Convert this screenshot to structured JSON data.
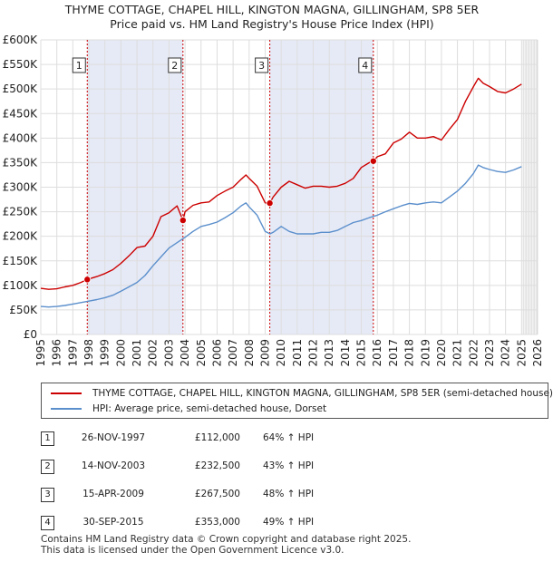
{
  "chart_data": {
    "type": "line",
    "title": "THYME COTTAGE, CHAPEL HILL, KINGTON MAGNA, GILLINGHAM, SP8 5ER",
    "subtitle": "Price paid vs. HM Land Registry's House Price Index (HPI)",
    "xlim": [
      1995,
      2026
    ],
    "ylim": [
      0,
      600000
    ],
    "x_ticks": [
      "1995",
      "1996",
      "1997",
      "1998",
      "1999",
      "2000",
      "2001",
      "2002",
      "2003",
      "2004",
      "2005",
      "2006",
      "2007",
      "2008",
      "2009",
      "2010",
      "2011",
      "2012",
      "2013",
      "2014",
      "2015",
      "2016",
      "2017",
      "2018",
      "2019",
      "2020",
      "2021",
      "2022",
      "2023",
      "2024",
      "2025",
      "2026"
    ],
    "y_ticks": [
      {
        "value": 0,
        "label": "£0"
      },
      {
        "value": 50000,
        "label": "£50K"
      },
      {
        "value": 100000,
        "label": "£100K"
      },
      {
        "value": 150000,
        "label": "£150K"
      },
      {
        "value": 200000,
        "label": "£200K"
      },
      {
        "value": 250000,
        "label": "£250K"
      },
      {
        "value": 300000,
        "label": "£300K"
      },
      {
        "value": 350000,
        "label": "£350K"
      },
      {
        "value": 400000,
        "label": "£400K"
      },
      {
        "value": 450000,
        "label": "£450K"
      },
      {
        "value": 500000,
        "label": "£500K"
      },
      {
        "value": 550000,
        "label": "£550K"
      },
      {
        "value": 600000,
        "label": "£600K"
      }
    ],
    "shaded_periods": [
      [
        1997.9,
        2003.87
      ],
      [
        2009.29,
        2015.75
      ]
    ],
    "forecast_start": 2025.1,
    "series": [
      {
        "name": "THYME COTTAGE, CHAPEL HILL, KINGTON MAGNA, GILLINGHAM, SP8 5ER (semi-detached house)",
        "color": "#cc0000",
        "x": [
          1995.0,
          1995.5,
          1996.0,
          1996.5,
          1997.0,
          1997.5,
          1997.9,
          1998.5,
          1999.0,
          1999.5,
          2000.0,
          2000.5,
          2001.0,
          2001.5,
          2002.0,
          2002.5,
          2003.0,
          2003.5,
          2003.87,
          2004.0,
          2004.5,
          2005.0,
          2005.5,
          2006.0,
          2006.5,
          2007.0,
          2007.5,
          2007.8,
          2008.0,
          2008.5,
          2009.0,
          2009.29,
          2009.5,
          2010.0,
          2010.5,
          2011.0,
          2011.5,
          2012.0,
          2012.5,
          2013.0,
          2013.5,
          2014.0,
          2014.5,
          2015.0,
          2015.5,
          2015.75,
          2016.0,
          2016.5,
          2017.0,
          2017.5,
          2018.0,
          2018.5,
          2019.0,
          2019.5,
          2020.0,
          2020.5,
          2021.0,
          2021.5,
          2022.0,
          2022.3,
          2022.6,
          2023.0,
          2023.5,
          2024.0,
          2024.5,
          2025.0
        ],
        "y": [
          94000,
          92000,
          93000,
          97000,
          100000,
          106000,
          112000,
          118000,
          124000,
          132000,
          145000,
          160000,
          177000,
          180000,
          200000,
          240000,
          248000,
          262000,
          232500,
          250000,
          263000,
          268000,
          270000,
          283000,
          292000,
          300000,
          316000,
          325000,
          318000,
          302000,
          268000,
          267500,
          280000,
          300000,
          312000,
          305000,
          298000,
          302000,
          302000,
          300000,
          302000,
          308000,
          318000,
          340000,
          350000,
          353000,
          362000,
          368000,
          390000,
          398000,
          412000,
          400000,
          400000,
          403000,
          396000,
          418000,
          438000,
          475000,
          505000,
          522000,
          512000,
          505000,
          495000,
          492000,
          500000,
          510000
        ]
      },
      {
        "name": "HPI: Average price, semi-detached house, Dorset",
        "color": "#5b8fcc",
        "x": [
          1995.0,
          1995.5,
          1996.0,
          1996.5,
          1997.0,
          1997.5,
          1998.0,
          1998.5,
          1999.0,
          1999.5,
          2000.0,
          2000.5,
          2001.0,
          2001.5,
          2002.0,
          2002.5,
          2003.0,
          2003.5,
          2004.0,
          2004.5,
          2005.0,
          2005.5,
          2006.0,
          2006.5,
          2007.0,
          2007.5,
          2007.8,
          2008.0,
          2008.5,
          2009.0,
          2009.3,
          2009.5,
          2010.0,
          2010.5,
          2011.0,
          2011.5,
          2012.0,
          2012.5,
          2013.0,
          2013.5,
          2014.0,
          2014.5,
          2015.0,
          2015.5,
          2016.0,
          2016.5,
          2017.0,
          2017.5,
          2018.0,
          2018.5,
          2019.0,
          2019.5,
          2020.0,
          2020.5,
          2021.0,
          2021.5,
          2022.0,
          2022.3,
          2022.6,
          2023.0,
          2023.5,
          2024.0,
          2024.5,
          2025.0
        ],
        "y": [
          57000,
          56000,
          57000,
          59000,
          62000,
          65000,
          68000,
          71000,
          75000,
          80000,
          88000,
          97000,
          106000,
          120000,
          140000,
          158000,
          176000,
          187000,
          198000,
          210000,
          220000,
          224000,
          229000,
          238000,
          248000,
          262000,
          268000,
          260000,
          243000,
          210000,
          205000,
          208000,
          220000,
          210000,
          205000,
          205000,
          205000,
          208000,
          208000,
          212000,
          220000,
          228000,
          232000,
          238000,
          243000,
          250000,
          256000,
          262000,
          267000,
          265000,
          268000,
          270000,
          268000,
          280000,
          292000,
          308000,
          328000,
          345000,
          340000,
          336000,
          332000,
          330000,
          335000,
          342000
        ]
      }
    ],
    "sales": [
      {
        "marker": "1",
        "x": 1997.9,
        "price": 112000
      },
      {
        "marker": "2",
        "x": 2003.87,
        "price": 232500
      },
      {
        "marker": "3",
        "x": 2009.29,
        "price": 267500
      },
      {
        "marker": "4",
        "x": 2015.75,
        "price": 353000
      }
    ]
  },
  "legend": {
    "red_label": "THYME COTTAGE, CHAPEL HILL, KINGTON MAGNA, GILLINGHAM, SP8 5ER (semi-detached house)",
    "blue_label": "HPI: Average price, semi-detached house, Dorset"
  },
  "sales_table": [
    {
      "marker": "1",
      "date": "26-NOV-1997",
      "price": "£112,000",
      "hpi": "64% ↑ HPI"
    },
    {
      "marker": "2",
      "date": "14-NOV-2003",
      "price": "£232,500",
      "hpi": "43% ↑ HPI"
    },
    {
      "marker": "3",
      "date": "15-APR-2009",
      "price": "£267,500",
      "hpi": "48% ↑ HPI"
    },
    {
      "marker": "4",
      "date": "30-SEP-2015",
      "price": "£353,000",
      "hpi": "49% ↑ HPI"
    }
  ],
  "footer": {
    "line1": "Contains HM Land Registry data © Crown copyright and database right 2025.",
    "line2": "This data is licensed under the Open Government Licence v3.0."
  },
  "colors": {
    "red": "#cc0000",
    "blue": "#5b8fcc",
    "shade": "#e6eaf6",
    "grid": "#dddddd"
  }
}
